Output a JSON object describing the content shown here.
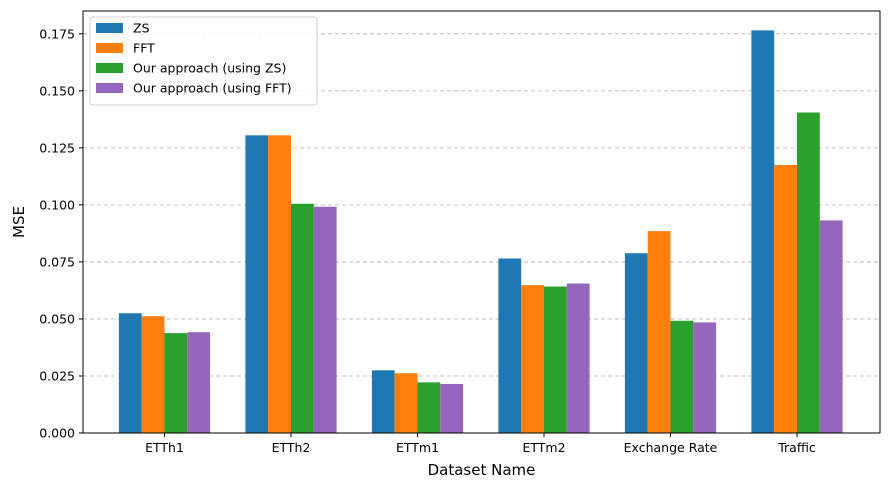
{
  "chart_data": {
    "type": "bar",
    "xlabel": "Dataset Name",
    "ylabel": "MSE",
    "ylim": [
      0,
      0.185
    ],
    "yticks": [
      "0.000",
      "0.025",
      "0.050",
      "0.075",
      "0.100",
      "0.125",
      "0.150",
      "0.175"
    ],
    "grid": "y-dashed",
    "legend_position": "top-left",
    "categories": [
      "ETTh1",
      "ETTh2",
      "ETTm1",
      "ETTm2",
      "Exchange Rate",
      "Traffic"
    ],
    "series": [
      {
        "name": "ZS",
        "color": "#1f77b4",
        "values": [
          0.0525,
          0.1305,
          0.0275,
          0.0765,
          0.0788,
          0.1765
        ]
      },
      {
        "name": "FFT",
        "color": "#ff7f0e",
        "values": [
          0.0512,
          0.1305,
          0.0262,
          0.0648,
          0.0885,
          0.1175
        ]
      },
      {
        "name": "Our approach (using ZS)",
        "color": "#2ca02c",
        "values": [
          0.0438,
          0.1005,
          0.0222,
          0.0642,
          0.0492,
          0.1405
        ]
      },
      {
        "name": "Our approach (using FFT)",
        "color": "#9467bd",
        "values": [
          0.0442,
          0.0992,
          0.0215,
          0.0655,
          0.0485,
          0.0932
        ]
      }
    ]
  }
}
